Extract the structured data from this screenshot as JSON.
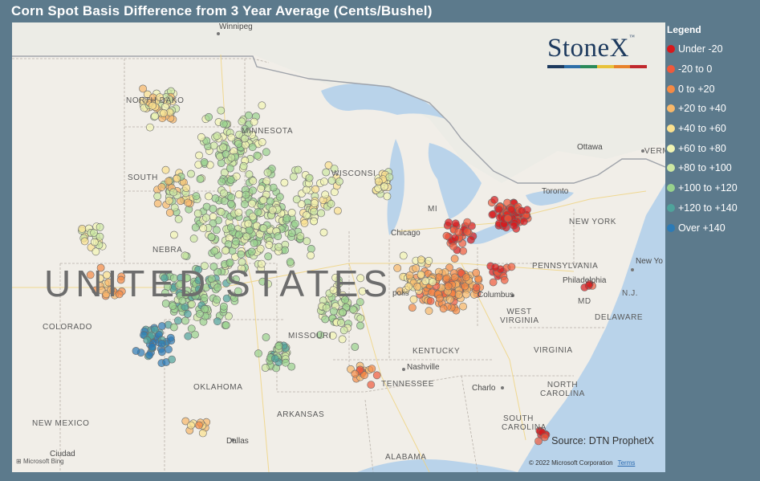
{
  "title": "Corn Spot Basis Difference from 3 Year Average (Cents/Bushel)",
  "legend": {
    "title": "Legend",
    "items": [
      {
        "label": "Under -20",
        "color": "#d7191c"
      },
      {
        "label": "-20 to 0",
        "color": "#ef5a3c"
      },
      {
        "label": "0 to +20",
        "color": "#f58a45"
      },
      {
        "label": "+20 to +40",
        "color": "#f8b86a"
      },
      {
        "label": "+40 to +60",
        "color": "#fbe18f"
      },
      {
        "label": "+60 to +80",
        "color": "#f2f5b4"
      },
      {
        "label": "+80 to +100",
        "color": "#cde8a3"
      },
      {
        "label": "+100 to +120",
        "color": "#98d28d"
      },
      {
        "label": "+120 to +140",
        "color": "#4fa39b"
      },
      {
        "label": "Over +140",
        "color": "#2c7bb6"
      }
    ]
  },
  "logo": {
    "text": "StoneX",
    "tm": "™"
  },
  "source": "Source: DTN ProphetX",
  "copyright": "© 2022 Microsoft Corporation",
  "terms": "Terms",
  "bing": "Microsoft Bing",
  "map_labels": {
    "winnipeg": "Winnipeg",
    "north_dakota": "NORTH DAKO",
    "minnesota": "MINNESOTA",
    "south_dakota": "SOUTH",
    "nebraska": "NEBRA",
    "colorado": "COLORADO",
    "missouri": "MISSOURI",
    "kentucky": "KENTUCKY",
    "tennessee": "TENNESSEE",
    "oklahoma": "OKLAHOMA",
    "arkansas": "ARKANSAS",
    "new_mexico": "NEW MEXICO",
    "alabama": "ALABAMA",
    "virginia": "VIRGINIA",
    "west_virginia": "WEST VIRGINIA",
    "pennsylvania": "PENNSYLVANIA",
    "new_york": "NEW YORK",
    "north_carolina": "NORTH CAROLINA",
    "south_carolina": "SOUTH CAROLINA",
    "delaware": "DELAWARE",
    "md": "MD",
    "nj": "N.J.",
    "vermont": "VERMO",
    "ottawa": "Ottawa",
    "chicago": "Chicago",
    "columbus": "Columbus",
    "philadelphia": "Philadelphia",
    "new_york_city": "New Yo",
    "nashville": "Nashville",
    "charlotte": "Charlo",
    "dallas": "Dallas",
    "ciudad": "Ciudad",
    "toronto": "Toronto",
    "wisconsin": "WISCONSI",
    "michigan": "MI",
    "polis": "polis",
    "united_states": "UNITED STATES"
  }
}
